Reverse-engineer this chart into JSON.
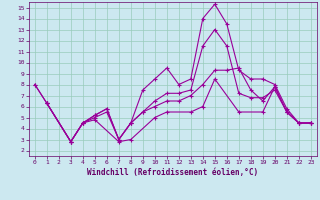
{
  "xlabel": "Windchill (Refroidissement éolien,°C)",
  "bg_color": "#cce8f0",
  "grid_color": "#99ccbb",
  "line_color": "#990099",
  "axis_color": "#660066",
  "xlim": [
    -0.5,
    23.5
  ],
  "ylim": [
    1.5,
    15.5
  ],
  "xticks": [
    0,
    1,
    2,
    3,
    4,
    5,
    6,
    7,
    8,
    9,
    10,
    11,
    12,
    13,
    14,
    15,
    16,
    17,
    18,
    19,
    20,
    21,
    22,
    23
  ],
  "yticks": [
    2,
    3,
    4,
    5,
    6,
    7,
    8,
    9,
    10,
    11,
    12,
    13,
    14,
    15
  ],
  "line1_x": [
    0,
    1,
    3,
    4,
    5,
    6,
    7,
    8,
    9,
    10,
    11,
    12,
    13,
    14,
    15,
    16,
    17,
    18,
    19,
    20,
    21,
    22,
    23
  ],
  "line1_y": [
    8.0,
    6.3,
    2.8,
    4.5,
    5.2,
    5.8,
    3.0,
    4.5,
    7.5,
    8.5,
    9.5,
    8.0,
    8.5,
    14.0,
    15.3,
    13.5,
    9.3,
    8.5,
    8.5,
    8.0,
    5.8,
    4.5,
    4.5
  ],
  "line2_x": [
    0,
    1,
    3,
    4,
    5,
    6,
    7,
    8,
    9,
    10,
    11,
    12,
    13,
    14,
    15,
    16,
    17,
    18,
    19,
    20,
    21,
    22,
    23
  ],
  "line2_y": [
    8.0,
    6.3,
    2.8,
    4.5,
    5.2,
    5.8,
    3.0,
    4.5,
    5.5,
    6.5,
    7.2,
    7.2,
    7.5,
    11.5,
    13.0,
    11.5,
    7.2,
    6.8,
    6.8,
    7.5,
    5.5,
    4.5,
    4.5
  ],
  "line3_x": [
    1,
    3,
    4,
    5,
    6,
    7,
    8,
    9,
    10,
    11,
    12,
    13,
    14,
    15,
    16,
    17,
    18,
    19,
    20,
    21,
    22,
    23
  ],
  "line3_y": [
    6.3,
    2.8,
    4.5,
    5.0,
    5.5,
    3.0,
    4.5,
    5.5,
    6.0,
    6.5,
    6.5,
    7.0,
    8.0,
    9.3,
    9.3,
    9.5,
    7.5,
    6.5,
    7.8,
    5.5,
    4.5,
    4.5
  ],
  "line4_x": [
    1,
    3,
    4,
    5,
    7,
    8,
    10,
    11,
    13,
    14,
    15,
    17,
    19,
    20,
    21,
    22,
    23
  ],
  "line4_y": [
    6.3,
    2.8,
    4.5,
    4.8,
    2.8,
    3.0,
    5.0,
    5.5,
    5.5,
    6.0,
    8.5,
    5.5,
    5.5,
    7.8,
    5.5,
    4.5,
    4.5
  ]
}
